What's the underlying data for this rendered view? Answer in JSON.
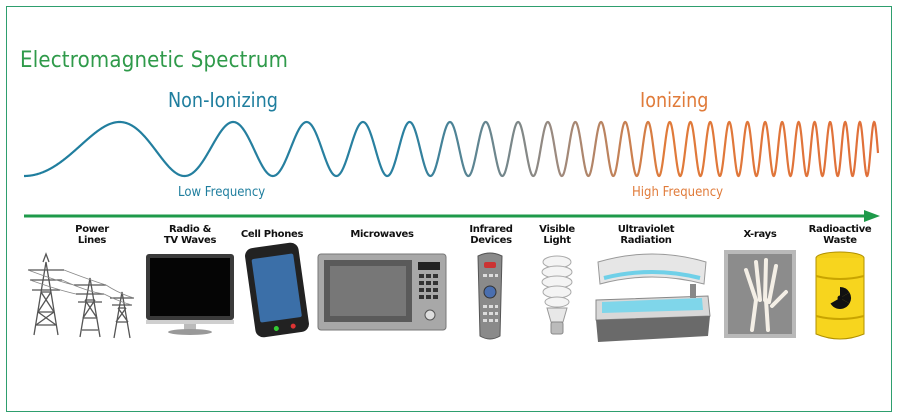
{
  "title": "Electromagnetic Spectrum",
  "categories": {
    "non_ionizing": "Non-Ionizing",
    "ionizing": "Ionizing"
  },
  "frequency": {
    "low": "Low Frequency",
    "high": "High Frequency"
  },
  "colors": {
    "title": "#2f9a4a",
    "non_ionizing": "#1f7e9e",
    "ionizing": "#e07b3a",
    "arrow": "#1e9a4a",
    "frame": "#2e9e6e"
  },
  "items": [
    {
      "line1": "Power",
      "line2": "Lines",
      "icon": "power-lines-icon"
    },
    {
      "line1": "Radio &",
      "line2": "TV Waves",
      "icon": "tv-icon"
    },
    {
      "line1": "Cell Phones",
      "line2": "",
      "icon": "cell-phone-icon"
    },
    {
      "line1": "Microwaves",
      "line2": "",
      "icon": "microwave-icon"
    },
    {
      "line1": "Infrared",
      "line2": "Devices",
      "icon": "remote-control-icon"
    },
    {
      "line1": "Visible",
      "line2": "Light",
      "icon": "light-bulb-icon"
    },
    {
      "line1": "Ultraviolet",
      "line2": "Radiation",
      "icon": "tanning-bed-icon"
    },
    {
      "line1": "X-rays",
      "line2": "",
      "icon": "xray-hand-icon"
    },
    {
      "line1": "Radioactive",
      "line2": "Waste",
      "icon": "radioactive-barrel-icon"
    }
  ]
}
